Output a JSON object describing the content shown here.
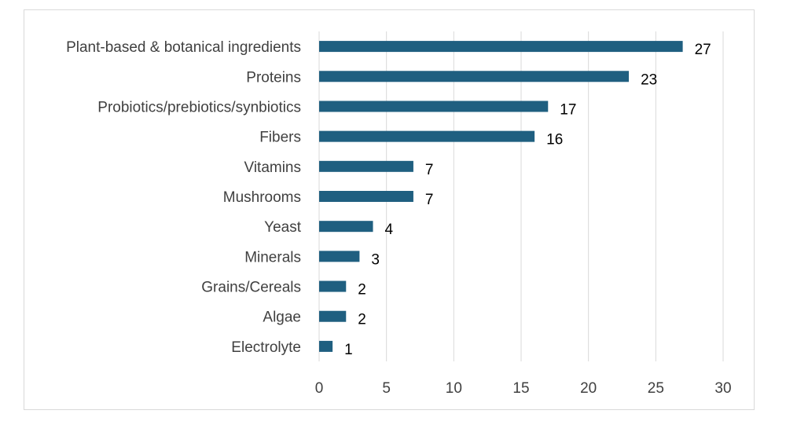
{
  "chart_data": {
    "type": "bar",
    "orientation": "horizontal",
    "categories": [
      "Plant-based & botanical ingredients",
      "Proteins",
      "Probiotics/prebiotics/synbiotics",
      "Fibers",
      "Vitamins",
      "Mushrooms",
      "Yeast",
      "Minerals",
      "Grains/Cereals",
      "Algae",
      "Electrolyte"
    ],
    "values": [
      27,
      23,
      17,
      16,
      7,
      7,
      4,
      3,
      2,
      2,
      1
    ],
    "title": "",
    "xlabel": "",
    "ylabel": "",
    "xlim": [
      0,
      30
    ],
    "x_ticks": [
      0,
      5,
      10,
      15,
      20,
      25,
      30
    ],
    "grid": "vertical",
    "legend": "none",
    "data_labels": true,
    "bar_color": "#1f5f80"
  }
}
